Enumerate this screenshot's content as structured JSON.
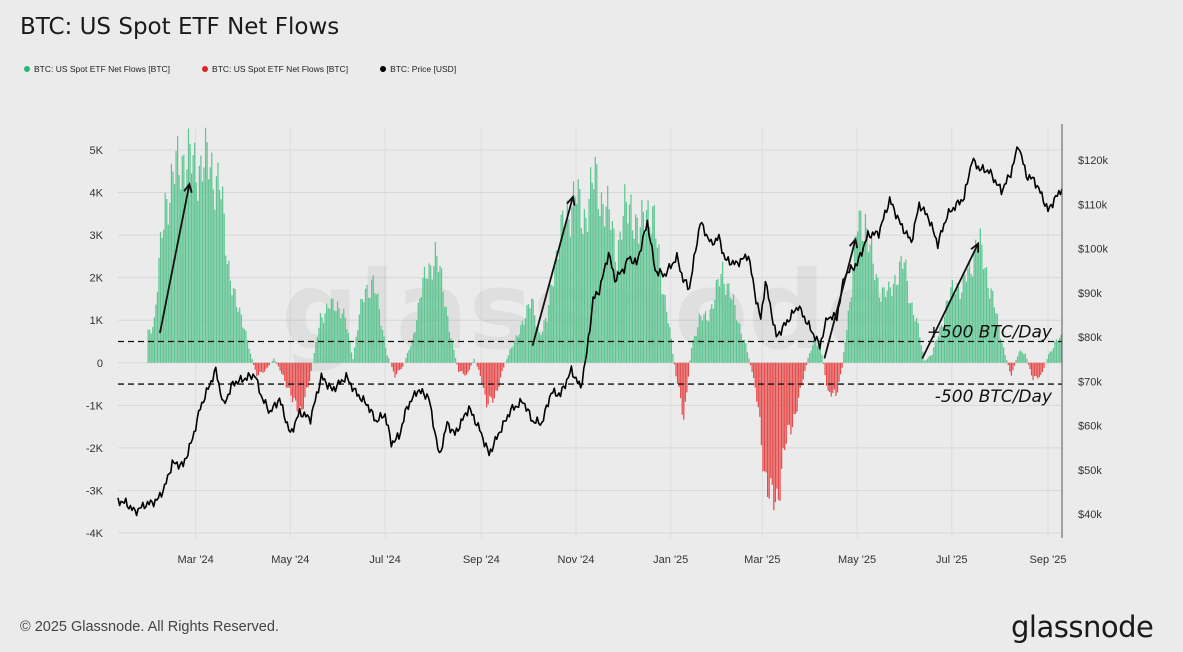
{
  "colors": {
    "inflow": "#5fc592",
    "outflow": "#e64b4b",
    "price": "#000000"
  },
  "chart_data": {
    "type": "bar",
    "title": "BTC: US Spot ETF Net Flows",
    "legend": [
      {
        "label": "BTC: US Spot ETF Net Flows [BTC]",
        "color": "#2bb673"
      },
      {
        "label": "BTC: US Spot ETF Net Flows [BTC]",
        "color": "#e02424"
      },
      {
        "label": "BTC: Price [USD]",
        "color": "#000000"
      }
    ],
    "legend_placement": "top-left",
    "grid": true,
    "x_axis": {
      "type": "date",
      "range": [
        "2024-01-11",
        "2025-09-10"
      ],
      "ticks": [
        {
          "date": "2024-03-01",
          "label": "Mar '24"
        },
        {
          "date": "2024-05-01",
          "label": "May '24"
        },
        {
          "date": "2024-07-01",
          "label": "Jul '24"
        },
        {
          "date": "2024-09-01",
          "label": "Sep '24"
        },
        {
          "date": "2024-11-01",
          "label": "Nov '24"
        },
        {
          "date": "2025-01-01",
          "label": "Jan '25"
        },
        {
          "date": "2025-03-01",
          "label": "Mar '25"
        },
        {
          "date": "2025-05-01",
          "label": "May '25"
        },
        {
          "date": "2025-07-01",
          "label": "Jul '25"
        },
        {
          "date": "2025-09-01",
          "label": "Sep '25"
        }
      ]
    },
    "y_left": {
      "range": [
        -4000,
        5000
      ],
      "ticks": [
        {
          "value": 5000,
          "label": "5K"
        },
        {
          "value": 4000,
          "label": "4K"
        },
        {
          "value": 3000,
          "label": "3K"
        },
        {
          "value": 2000,
          "label": "2K"
        },
        {
          "value": 1000,
          "label": "1K"
        },
        {
          "value": 0,
          "label": "0"
        },
        {
          "value": -1000,
          "label": "-1K"
        },
        {
          "value": -2000,
          "label": "-2K"
        },
        {
          "value": -3000,
          "label": "-3K"
        },
        {
          "value": -4000,
          "label": "-4K"
        }
      ]
    },
    "y_right": {
      "range": [
        40000,
        120000
      ],
      "ticks": [
        {
          "value": 120000,
          "label": "$120k"
        },
        {
          "value": 110000,
          "label": "$110k"
        },
        {
          "value": 100000,
          "label": "$100k"
        },
        {
          "value": 90000,
          "label": "$90k"
        },
        {
          "value": 80000,
          "label": "$80k"
        },
        {
          "value": 70000,
          "label": "$70k"
        },
        {
          "value": 60000,
          "label": "$60k"
        },
        {
          "value": 50000,
          "label": "$50k"
        },
        {
          "value": 40000,
          "label": "$40k"
        }
      ]
    },
    "reference_lines": [
      {
        "value": 500,
        "label": "+500 BTC/Day"
      },
      {
        "value": -500,
        "label": "-500 BTC/Day"
      }
    ],
    "annotations": [
      {
        "type": "arrow",
        "from": [
          "2024-02-07",
          700
        ],
        "to": [
          "2024-02-26",
          4200
        ]
      },
      {
        "type": "arrow",
        "from": [
          "2024-10-04",
          400
        ],
        "to": [
          "2024-10-30",
          3900
        ]
      },
      {
        "type": "arrow",
        "from": [
          "2025-04-10",
          100
        ],
        "to": [
          "2025-04-30",
          2900
        ]
      },
      {
        "type": "arrow",
        "from": [
          "2025-06-12",
          100
        ],
        "to": [
          "2025-07-18",
          2800
        ]
      }
    ],
    "net_flows_30d_btc": [
      [
        "2024-01-30",
        700
      ],
      [
        "2024-02-03",
        1000
      ],
      [
        "2024-02-10",
        3800
      ],
      [
        "2024-02-17",
        4500
      ],
      [
        "2024-02-22",
        4900
      ],
      [
        "2024-02-28",
        4600
      ],
      [
        "2024-03-05",
        4700
      ],
      [
        "2024-03-11",
        4600
      ],
      [
        "2024-03-16",
        4200
      ],
      [
        "2024-03-21",
        2500
      ],
      [
        "2024-03-27",
        1300
      ],
      [
        "2024-04-01",
        900
      ],
      [
        "2024-04-05",
        200
      ],
      [
        "2024-04-09",
        -300
      ],
      [
        "2024-04-14",
        -200
      ],
      [
        "2024-04-20",
        100
      ],
      [
        "2024-04-26",
        -300
      ],
      [
        "2024-05-02",
        -900
      ],
      [
        "2024-05-08",
        -1100
      ],
      [
        "2024-05-12",
        -600
      ],
      [
        "2024-05-16",
        200
      ],
      [
        "2024-05-20",
        1100
      ],
      [
        "2024-05-26",
        1300
      ],
      [
        "2024-05-31",
        1400
      ],
      [
        "2024-06-05",
        1000
      ],
      [
        "2024-06-10",
        100
      ],
      [
        "2024-06-14",
        1100
      ],
      [
        "2024-06-18",
        1700
      ],
      [
        "2024-06-23",
        1900
      ],
      [
        "2024-06-27",
        1200
      ],
      [
        "2024-07-02",
        200
      ],
      [
        "2024-07-07",
        -300
      ],
      [
        "2024-07-12",
        -100
      ],
      [
        "2024-07-18",
        500
      ],
      [
        "2024-07-23",
        1500
      ],
      [
        "2024-07-28",
        2200
      ],
      [
        "2024-08-02",
        2500
      ],
      [
        "2024-08-07",
        1800
      ],
      [
        "2024-08-12",
        600
      ],
      [
        "2024-08-17",
        -200
      ],
      [
        "2024-08-22",
        -300
      ],
      [
        "2024-08-27",
        100
      ],
      [
        "2024-08-31",
        -300
      ],
      [
        "2024-09-04",
        -900
      ],
      [
        "2024-09-09",
        -900
      ],
      [
        "2024-09-14",
        -200
      ],
      [
        "2024-09-19",
        300
      ],
      [
        "2024-09-24",
        600
      ],
      [
        "2024-09-29",
        1200
      ],
      [
        "2024-10-03",
        1400
      ],
      [
        "2024-10-08",
        700
      ],
      [
        "2024-10-13",
        1000
      ],
      [
        "2024-10-17",
        2200
      ],
      [
        "2024-10-22",
        3000
      ],
      [
        "2024-10-26",
        3500
      ],
      [
        "2024-10-31",
        4000
      ],
      [
        "2024-11-05",
        3300
      ],
      [
        "2024-11-09",
        3900
      ],
      [
        "2024-11-13",
        4300
      ],
      [
        "2024-11-18",
        3800
      ],
      [
        "2024-11-23",
        3300
      ],
      [
        "2024-11-27",
        2600
      ],
      [
        "2024-12-02",
        3500
      ],
      [
        "2024-12-06",
        3800
      ],
      [
        "2024-12-11",
        2900
      ],
      [
        "2024-12-16",
        3800
      ],
      [
        "2024-12-21",
        3200
      ],
      [
        "2024-12-26",
        2000
      ],
      [
        "2024-12-30",
        1000
      ],
      [
        "2025-01-04",
        -300
      ],
      [
        "2025-01-09",
        -1300
      ],
      [
        "2025-01-14",
        400
      ],
      [
        "2025-01-19",
        1000
      ],
      [
        "2025-01-24",
        1100
      ],
      [
        "2025-01-29",
        1500
      ],
      [
        "2025-02-03",
        2200
      ],
      [
        "2025-02-08",
        1600
      ],
      [
        "2025-02-13",
        1000
      ],
      [
        "2025-02-18",
        400
      ],
      [
        "2025-02-22",
        -200
      ],
      [
        "2025-02-26",
        -1100
      ],
      [
        "2025-03-02",
        -2500
      ],
      [
        "2025-03-06",
        -3300
      ],
      [
        "2025-03-10",
        -3200
      ],
      [
        "2025-03-15",
        -2000
      ],
      [
        "2025-03-20",
        -1400
      ],
      [
        "2025-03-25",
        -700
      ],
      [
        "2025-03-30",
        100
      ],
      [
        "2025-04-04",
        600
      ],
      [
        "2025-04-08",
        200
      ],
      [
        "2025-04-12",
        -700
      ],
      [
        "2025-04-17",
        -800
      ],
      [
        "2025-04-21",
        -100
      ],
      [
        "2025-04-26",
        1500
      ],
      [
        "2025-05-01",
        3200
      ],
      [
        "2025-05-06",
        3400
      ],
      [
        "2025-05-11",
        2200
      ],
      [
        "2025-05-16",
        1700
      ],
      [
        "2025-05-21",
        1600
      ],
      [
        "2025-05-26",
        2100
      ],
      [
        "2025-05-31",
        2300
      ],
      [
        "2025-06-04",
        1500
      ],
      [
        "2025-06-09",
        800
      ],
      [
        "2025-06-13",
        50
      ],
      [
        "2025-06-18",
        200
      ],
      [
        "2025-06-23",
        800
      ],
      [
        "2025-06-28",
        1400
      ],
      [
        "2025-07-03",
        1900
      ],
      [
        "2025-07-07",
        1700
      ],
      [
        "2025-07-12",
        2200
      ],
      [
        "2025-07-17",
        2900
      ],
      [
        "2025-07-21",
        2400
      ],
      [
        "2025-07-26",
        1700
      ],
      [
        "2025-07-31",
        800
      ],
      [
        "2025-08-04",
        200
      ],
      [
        "2025-08-08",
        -300
      ],
      [
        "2025-08-13",
        300
      ],
      [
        "2025-08-17",
        200
      ],
      [
        "2025-08-22",
        -400
      ],
      [
        "2025-08-27",
        -300
      ],
      [
        "2025-09-01",
        200
      ],
      [
        "2025-09-06",
        500
      ],
      [
        "2025-09-10",
        600
      ]
    ],
    "price_usd": [
      [
        "2024-01-11",
        43000
      ],
      [
        "2024-01-16",
        42500
      ],
      [
        "2024-01-22",
        40500
      ],
      [
        "2024-01-28",
        42000
      ],
      [
        "2024-02-05",
        43000
      ],
      [
        "2024-02-10",
        46000
      ],
      [
        "2024-02-15",
        51500
      ],
      [
        "2024-02-22",
        51000
      ],
      [
        "2024-02-28",
        57000
      ],
      [
        "2024-03-04",
        64000
      ],
      [
        "2024-03-11",
        70000
      ],
      [
        "2024-03-14",
        72500
      ],
      [
        "2024-03-19",
        64500
      ],
      [
        "2024-03-25",
        69500
      ],
      [
        "2024-04-01",
        70500
      ],
      [
        "2024-04-08",
        71500
      ],
      [
        "2024-04-13",
        66000
      ],
      [
        "2024-04-18",
        63000
      ],
      [
        "2024-04-24",
        66000
      ],
      [
        "2024-05-01",
        58000
      ],
      [
        "2024-05-07",
        63000
      ],
      [
        "2024-05-14",
        61500
      ],
      [
        "2024-05-21",
        71000
      ],
      [
        "2024-05-28",
        68000
      ],
      [
        "2024-06-06",
        71000
      ],
      [
        "2024-06-12",
        67500
      ],
      [
        "2024-06-20",
        64500
      ],
      [
        "2024-06-25",
        61000
      ],
      [
        "2024-07-01",
        62500
      ],
      [
        "2024-07-05",
        56000
      ],
      [
        "2024-07-10",
        57500
      ],
      [
        "2024-07-15",
        64000
      ],
      [
        "2024-07-22",
        68000
      ],
      [
        "2024-07-29",
        66500
      ],
      [
        "2024-08-05",
        53000
      ],
      [
        "2024-08-10",
        60500
      ],
      [
        "2024-08-15",
        58000
      ],
      [
        "2024-08-24",
        64000
      ],
      [
        "2024-08-31",
        59000
      ],
      [
        "2024-09-06",
        53500
      ],
      [
        "2024-09-12",
        58000
      ],
      [
        "2024-09-20",
        63500
      ],
      [
        "2024-09-28",
        65500
      ],
      [
        "2024-10-04",
        61000
      ],
      [
        "2024-10-10",
        60500
      ],
      [
        "2024-10-16",
        67500
      ],
      [
        "2024-10-22",
        67000
      ],
      [
        "2024-10-29",
        72500
      ],
      [
        "2024-11-04",
        68500
      ],
      [
        "2024-11-08",
        76500
      ],
      [
        "2024-11-12",
        88500
      ],
      [
        "2024-11-16",
        90500
      ],
      [
        "2024-11-22",
        99000
      ],
      [
        "2024-11-26",
        93000
      ],
      [
        "2024-12-02",
        95500
      ],
      [
        "2024-12-05",
        98000
      ],
      [
        "2024-12-10",
        96500
      ],
      [
        "2024-12-17",
        106000
      ],
      [
        "2024-12-22",
        95000
      ],
      [
        "2024-12-28",
        94000
      ],
      [
        "2025-01-05",
        98000
      ],
      [
        "2025-01-09",
        93000
      ],
      [
        "2025-01-13",
        91000
      ],
      [
        "2025-01-20",
        106000
      ],
      [
        "2025-01-27",
        101000
      ],
      [
        "2025-02-01",
        102500
      ],
      [
        "2025-02-05",
        97500
      ],
      [
        "2025-02-12",
        96500
      ],
      [
        "2025-02-20",
        98500
      ],
      [
        "2025-02-25",
        88500
      ],
      [
        "2025-02-28",
        84000
      ],
      [
        "2025-03-03",
        92500
      ],
      [
        "2025-03-10",
        80000
      ],
      [
        "2025-03-17",
        83500
      ],
      [
        "2025-03-24",
        87000
      ],
      [
        "2025-03-31",
        82500
      ],
      [
        "2025-04-07",
        78000
      ],
      [
        "2025-04-12",
        84500
      ],
      [
        "2025-04-18",
        84500
      ],
      [
        "2025-04-23",
        94000
      ],
      [
        "2025-05-01",
        96500
      ],
      [
        "2025-05-08",
        103000
      ],
      [
        "2025-05-15",
        103500
      ],
      [
        "2025-05-22",
        111000
      ],
      [
        "2025-05-29",
        105500
      ],
      [
        "2025-06-05",
        101500
      ],
      [
        "2025-06-10",
        110000
      ],
      [
        "2025-06-16",
        107000
      ],
      [
        "2025-06-22",
        101000
      ],
      [
        "2025-06-28",
        107500
      ],
      [
        "2025-07-03",
        109500
      ],
      [
        "2025-07-09",
        111500
      ],
      [
        "2025-07-14",
        120000
      ],
      [
        "2025-07-19",
        118000
      ],
      [
        "2025-07-25",
        117500
      ],
      [
        "2025-08-02",
        113000
      ],
      [
        "2025-08-08",
        117000
      ],
      [
        "2025-08-13",
        123500
      ],
      [
        "2025-08-18",
        116500
      ],
      [
        "2025-08-23",
        115500
      ],
      [
        "2025-08-28",
        112000
      ],
      [
        "2025-09-01",
        108500
      ],
      [
        "2025-09-05",
        111000
      ],
      [
        "2025-09-10",
        113500
      ]
    ]
  },
  "footer": {
    "copyright": "© 2025 Glassnode. All Rights Reserved.",
    "logo": "glassnode",
    "watermark": "glassnode"
  }
}
